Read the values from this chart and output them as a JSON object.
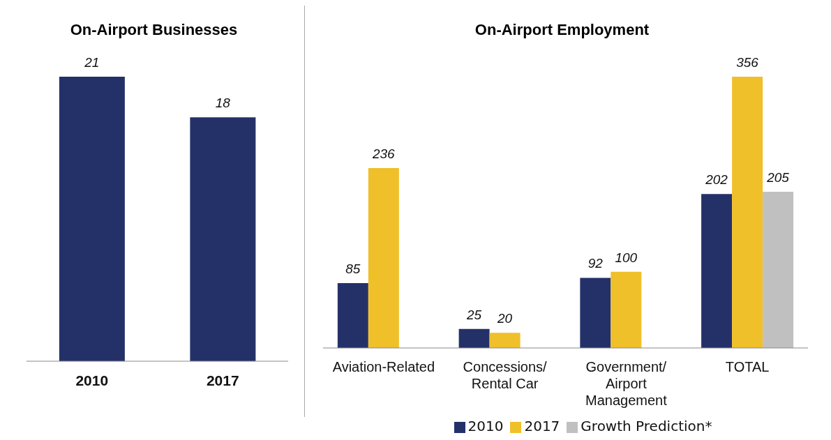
{
  "chart_data": [
    {
      "type": "bar",
      "title": "On-Airport Businesses",
      "categories": [
        "2010",
        "2017"
      ],
      "values": [
        21,
        18
      ],
      "color": "#243169",
      "data_labels": true
    },
    {
      "type": "bar",
      "title": "On-Airport Employment",
      "categories": [
        "Aviation-Related",
        "Concessions/ Rental Car",
        "Government/ Airport Management",
        "TOTAL"
      ],
      "series": [
        {
          "name": "2010",
          "color": "#243169",
          "values": [
            85,
            25,
            92,
            202
          ]
        },
        {
          "name": "2017",
          "color": "#f0c02a",
          "values": [
            236,
            20,
            100,
            356
          ]
        },
        {
          "name": "Growth Prediction*",
          "color": "#c0c0c0",
          "values": [
            null,
            null,
            null,
            205
          ]
        }
      ],
      "data_labels": true,
      "legend": "bottom"
    }
  ]
}
